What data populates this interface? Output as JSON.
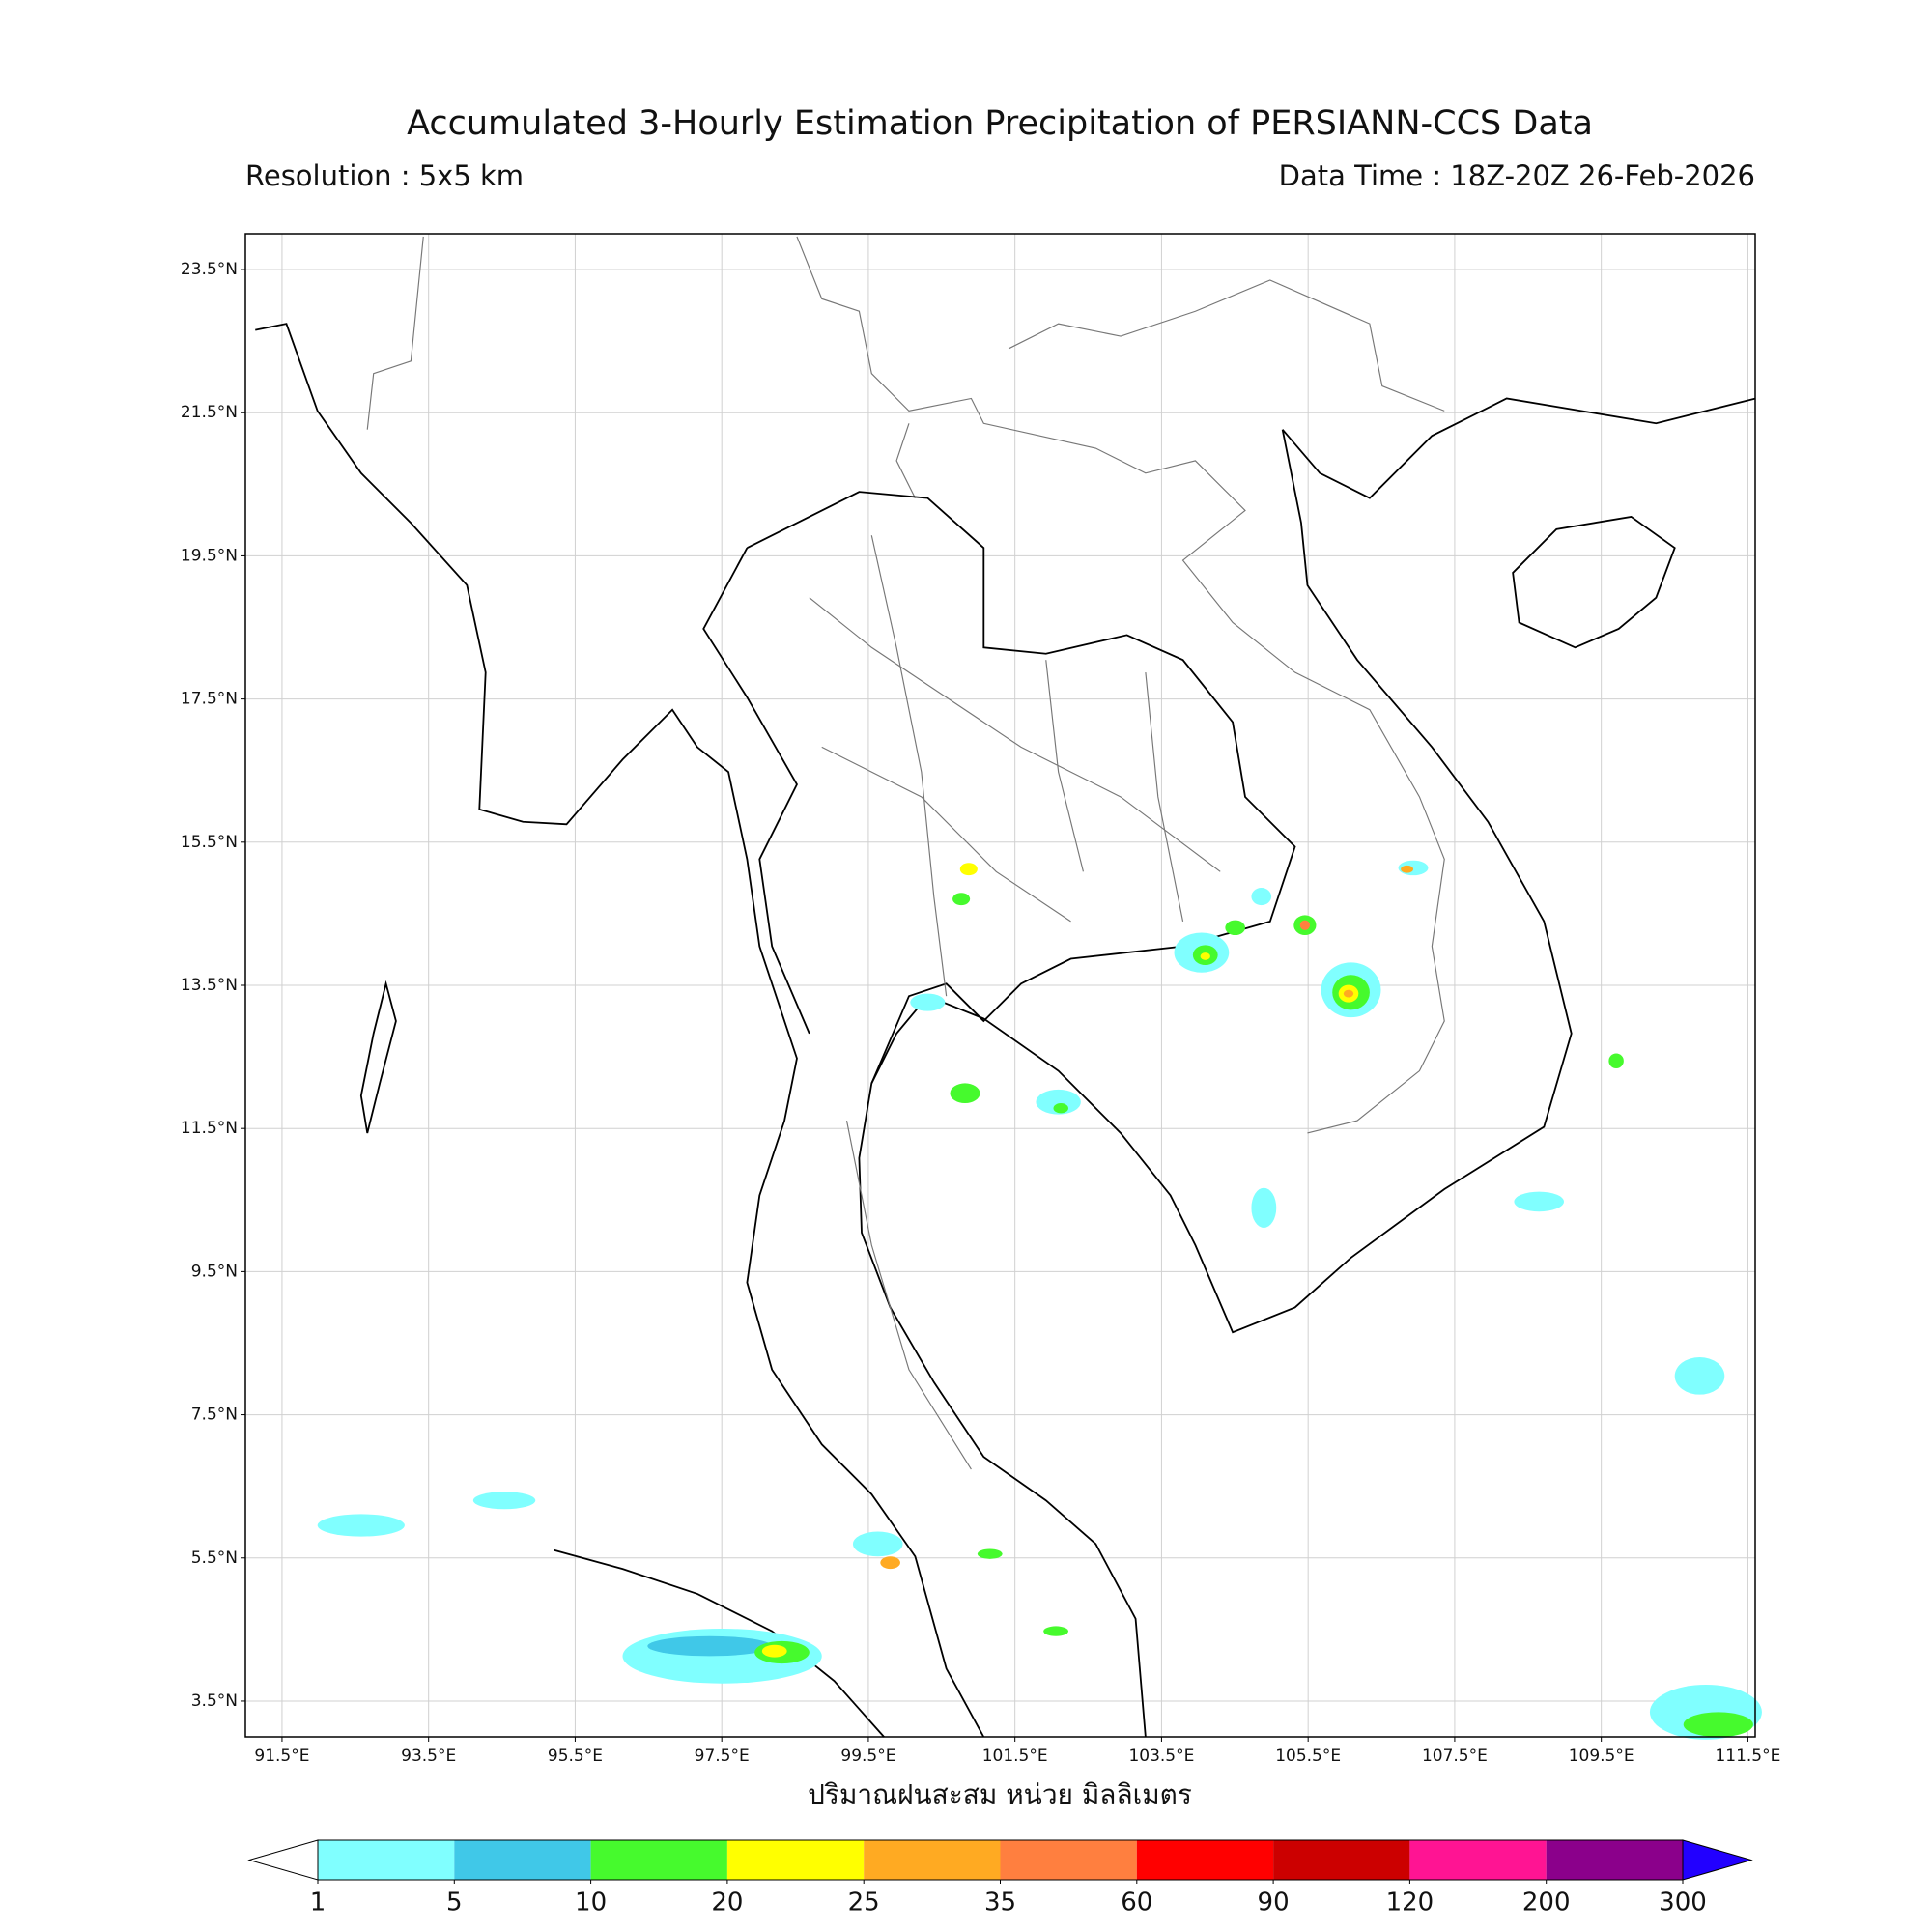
{
  "chart_data": {
    "type": "map",
    "title": "Accumulated 3-Hourly Estimation Precipitation of PERSIANN-CCS Data",
    "subtitle_left": "Resolution : 5x5 km",
    "subtitle_right": "Data Time : 18Z-20Z 26-Feb-2026",
    "x_label": "ปริมาณฝนสะสม หน่วย มิลลิเมตร",
    "xlim": [
      91,
      111.6
    ],
    "ylim": [
      3,
      24
    ],
    "xticks": [
      {
        "value": 91.5,
        "label": "91.5°E"
      },
      {
        "value": 93.5,
        "label": "93.5°E"
      },
      {
        "value": 95.5,
        "label": "95.5°E"
      },
      {
        "value": 97.5,
        "label": "97.5°E"
      },
      {
        "value": 99.5,
        "label": "99.5°E"
      },
      {
        "value": 101.5,
        "label": "101.5°E"
      },
      {
        "value": 103.5,
        "label": "103.5°E"
      },
      {
        "value": 105.5,
        "label": "105.5°E"
      },
      {
        "value": 107.5,
        "label": "107.5°E"
      },
      {
        "value": 109.5,
        "label": "109.5°E"
      },
      {
        "value": 111.5,
        "label": "111.5°E"
      }
    ],
    "yticks": [
      {
        "value": 23.5,
        "label": "23.5°N"
      },
      {
        "value": 21.5,
        "label": "21.5°N"
      },
      {
        "value": 19.5,
        "label": "19.5°N"
      },
      {
        "value": 17.5,
        "label": "17.5°N"
      },
      {
        "value": 15.5,
        "label": "15.5°N"
      },
      {
        "value": 13.5,
        "label": "13.5°N"
      },
      {
        "value": 11.5,
        "label": "11.5°N"
      },
      {
        "value": 9.5,
        "label": "9.5°N"
      },
      {
        "value": 7.5,
        "label": "7.5°N"
      },
      {
        "value": 5.5,
        "label": "5.5°N"
      },
      {
        "value": 3.5,
        "label": "3.5°N"
      }
    ],
    "grid": true,
    "colorbar": {
      "levels": [
        1,
        5,
        10,
        20,
        25,
        35,
        60,
        90,
        120,
        200,
        300
      ],
      "colors": [
        "#80ffff",
        "#40c8e8",
        "#46fa2d",
        "#ffff00",
        "#ffaa22",
        "#ff7f3f",
        "#ff0000",
        "#cc0000",
        "#ff1493",
        "#8b008b"
      ],
      "under_color": "#ffffff",
      "over_color": "#2200ff"
    }
  }
}
